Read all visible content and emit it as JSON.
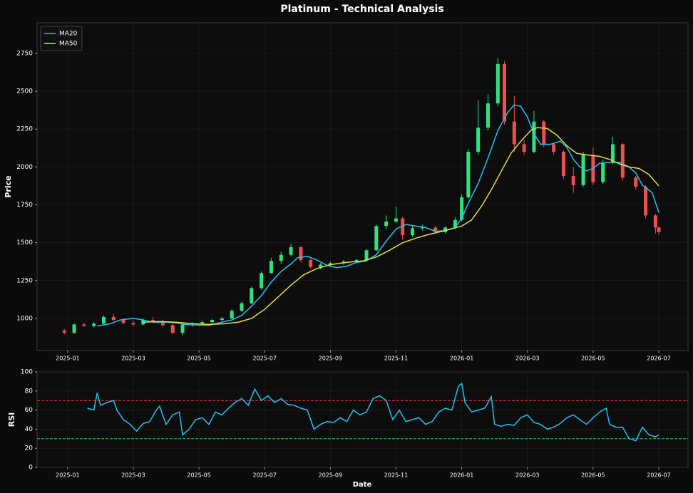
{
  "chart_data": [
    {
      "type": "candlestick",
      "title": "Platinum - Technical Analysis",
      "ylabel": "Price",
      "xlim": [
        -0.93,
        18.89
      ],
      "ylim": [
        788,
        2952
      ],
      "xticks": [
        {
          "value": 0,
          "label": "2025-01"
        },
        {
          "value": 2,
          "label": "2025-03"
        },
        {
          "value": 4,
          "label": "2025-05"
        },
        {
          "value": 6,
          "label": "2025-07"
        },
        {
          "value": 8,
          "label": "2025-09"
        },
        {
          "value": 10,
          "label": "2025-11"
        },
        {
          "value": 12,
          "label": "2026-01"
        },
        {
          "value": 14,
          "label": "2026-03"
        },
        {
          "value": 16,
          "label": "2026-05"
        },
        {
          "value": 18,
          "label": "2026-07"
        }
      ],
      "yticks": [
        1000,
        1250,
        1500,
        1750,
        2000,
        2250,
        2500,
        2750
      ],
      "grid": true,
      "legend": "upper left",
      "up_color": "#2ee37f",
      "down_color": "#ef4f4f",
      "candles": [
        [
          -0.1,
          920,
          930,
          895,
          905
        ],
        [
          0.2,
          905,
          965,
          900,
          960
        ],
        [
          0.5,
          960,
          970,
          945,
          950
        ],
        [
          0.8,
          950,
          975,
          940,
          965
        ],
        [
          1.1,
          965,
          1020,
          960,
          1010
        ],
        [
          1.4,
          1010,
          1030,
          985,
          990
        ],
        [
          1.7,
          990,
          1000,
          960,
          970
        ],
        [
          2.0,
          970,
          985,
          950,
          960
        ],
        [
          2.3,
          960,
          1000,
          955,
          990
        ],
        [
          2.6,
          990,
          1010,
          970,
          980
        ],
        [
          2.9,
          980,
          990,
          945,
          955
        ],
        [
          3.2,
          955,
          965,
          895,
          905
        ],
        [
          3.5,
          905,
          965,
          890,
          960
        ],
        [
          3.8,
          960,
          975,
          945,
          965
        ],
        [
          4.1,
          965,
          985,
          955,
          975
        ],
        [
          4.4,
          975,
          995,
          965,
          990
        ],
        [
          4.7,
          990,
          1010,
          980,
          1000
        ],
        [
          5.0,
          1000,
          1060,
          995,
          1050
        ],
        [
          5.3,
          1050,
          1110,
          1045,
          1100
        ],
        [
          5.6,
          1100,
          1210,
          1095,
          1200
        ],
        [
          5.9,
          1200,
          1310,
          1190,
          1300
        ],
        [
          6.2,
          1300,
          1400,
          1295,
          1380
        ],
        [
          6.5,
          1380,
          1440,
          1360,
          1420
        ],
        [
          6.8,
          1420,
          1490,
          1410,
          1470
        ],
        [
          7.1,
          1470,
          1480,
          1370,
          1385
        ],
        [
          7.4,
          1385,
          1395,
          1330,
          1340
        ],
        [
          7.7,
          1340,
          1365,
          1325,
          1355
        ],
        [
          8.0,
          1355,
          1375,
          1345,
          1365
        ],
        [
          8.4,
          1365,
          1385,
          1355,
          1375
        ],
        [
          8.8,
          1375,
          1395,
          1365,
          1385
        ],
        [
          9.1,
          1385,
          1460,
          1380,
          1450
        ],
        [
          9.4,
          1450,
          1620,
          1445,
          1610
        ],
        [
          9.7,
          1610,
          1680,
          1590,
          1640
        ],
        [
          10.0,
          1640,
          1740,
          1630,
          1660
        ],
        [
          10.2,
          1660,
          1670,
          1520,
          1550
        ],
        [
          10.5,
          1550,
          1610,
          1540,
          1595
        ],
        [
          10.8,
          1595,
          1620,
          1580,
          1600
        ],
        [
          11.2,
          1600,
          1610,
          1560,
          1570
        ],
        [
          11.5,
          1570,
          1610,
          1560,
          1600
        ],
        [
          11.8,
          1600,
          1670,
          1590,
          1650
        ],
        [
          12.0,
          1650,
          1820,
          1640,
          1800
        ],
        [
          12.2,
          1800,
          2120,
          1790,
          2100
        ],
        [
          12.5,
          2100,
          2440,
          2080,
          2260
        ],
        [
          12.8,
          2260,
          2480,
          2240,
          2420
        ],
        [
          13.1,
          2420,
          2720,
          2400,
          2680
        ],
        [
          13.3,
          2680,
          2700,
          2280,
          2300
        ],
        [
          13.6,
          2300,
          2470,
          2100,
          2150
        ],
        [
          13.9,
          2150,
          2180,
          2080,
          2100
        ],
        [
          14.2,
          2100,
          2370,
          2090,
          2300
        ],
        [
          14.5,
          2300,
          2310,
          2130,
          2150
        ],
        [
          14.8,
          2150,
          2160,
          2080,
          2100
        ],
        [
          15.1,
          2100,
          2110,
          1920,
          1940
        ],
        [
          15.4,
          1940,
          2000,
          1830,
          1880
        ],
        [
          15.7,
          1880,
          2100,
          1870,
          2080
        ],
        [
          16.0,
          2080,
          2130,
          1880,
          1900
        ],
        [
          16.3,
          1900,
          2050,
          1890,
          2030
        ],
        [
          16.6,
          2030,
          2200,
          2020,
          2150
        ],
        [
          16.9,
          2150,
          2160,
          1910,
          1930
        ],
        [
          17.3,
          1930,
          1940,
          1850,
          1870
        ],
        [
          17.6,
          1870,
          1880,
          1660,
          1680
        ],
        [
          17.9,
          1680,
          1690,
          1560,
          1600
        ],
        [
          18.0,
          1600,
          1610,
          1550,
          1570
        ]
      ],
      "series": [
        {
          "name": "MA20",
          "color": "#22c3ee",
          "x": [
            0.9,
            1.3,
            1.6,
            2.0,
            2.3,
            2.6,
            3.0,
            3.3,
            3.6,
            4.0,
            4.3,
            4.6,
            5.0,
            5.3,
            5.6,
            5.9,
            6.2,
            6.5,
            6.8,
            7.0,
            7.3,
            7.6,
            7.9,
            8.2,
            8.5,
            8.8,
            9.1,
            9.4,
            9.7,
            10.0,
            10.3,
            10.6,
            10.9,
            11.2,
            11.5,
            11.8,
            12.0,
            12.2,
            12.5,
            12.8,
            13.1,
            13.4,
            13.6,
            13.8,
            14.0,
            14.2,
            14.4,
            14.7,
            15.0,
            15.2,
            15.4,
            15.6,
            15.8,
            16.0,
            16.2,
            16.5,
            16.8,
            17.1,
            17.3,
            17.5,
            17.8,
            18.0
          ],
          "values": [
            950,
            965,
            990,
            1000,
            990,
            975,
            975,
            970,
            960,
            955,
            955,
            970,
            990,
            1020,
            1080,
            1150,
            1240,
            1310,
            1360,
            1400,
            1410,
            1385,
            1350,
            1335,
            1345,
            1370,
            1380,
            1420,
            1510,
            1590,
            1620,
            1610,
            1600,
            1575,
            1580,
            1600,
            1660,
            1760,
            1890,
            2060,
            2240,
            2360,
            2410,
            2400,
            2330,
            2220,
            2150,
            2150,
            2170,
            2130,
            2050,
            2000,
            1975,
            1990,
            2025,
            2030,
            2030,
            2000,
            1960,
            1880,
            1830,
            1700
          ]
        },
        {
          "name": "MA50",
          "color": "#e6dc3c",
          "x": [
            2.3,
            2.8,
            3.3,
            3.8,
            4.3,
            4.8,
            5.2,
            5.6,
            6.0,
            6.4,
            6.8,
            7.2,
            7.6,
            8.0,
            8.5,
            9.0,
            9.4,
            9.8,
            10.2,
            10.6,
            11.0,
            11.5,
            12.0,
            12.3,
            12.6,
            12.9,
            13.2,
            13.5,
            13.8,
            14.1,
            14.3,
            14.6,
            14.9,
            15.2,
            15.5,
            15.8,
            16.2,
            16.5,
            16.8,
            17.1,
            17.4,
            17.7,
            18.0
          ],
          "values": [
            975,
            980,
            975,
            965,
            960,
            965,
            975,
            1000,
            1060,
            1140,
            1220,
            1290,
            1330,
            1355,
            1370,
            1380,
            1405,
            1450,
            1500,
            1530,
            1555,
            1580,
            1610,
            1650,
            1740,
            1850,
            1970,
            2090,
            2170,
            2240,
            2260,
            2255,
            2210,
            2140,
            2090,
            2080,
            2070,
            2050,
            2020,
            2000,
            1990,
            1950,
            1875
          ]
        }
      ]
    },
    {
      "type": "line",
      "ylabel": "RSI",
      "xlabel": "Date",
      "xlim": [
        -0.93,
        18.89
      ],
      "ylim": [
        0,
        100
      ],
      "xticks": [
        {
          "value": 0,
          "label": "2025-01"
        },
        {
          "value": 2,
          "label": "2025-03"
        },
        {
          "value": 4,
          "label": "2025-05"
        },
        {
          "value": 6,
          "label": "2025-07"
        },
        {
          "value": 8,
          "label": "2025-09"
        },
        {
          "value": 10,
          "label": "2025-11"
        },
        {
          "value": 12,
          "label": "2026-01"
        },
        {
          "value": 14,
          "label": "2026-03"
        },
        {
          "value": 16,
          "label": "2026-05"
        },
        {
          "value": 18,
          "label": "2026-07"
        }
      ],
      "yticks": [
        0,
        20,
        40,
        60,
        80,
        100
      ],
      "grid": true,
      "hlines": [
        {
          "value": 70,
          "color": "#e04444"
        },
        {
          "value": 30,
          "color": "#22c06a"
        }
      ],
      "series": [
        {
          "color": "#22c3ee",
          "x": [
            0.6,
            0.8,
            0.9,
            1.0,
            1.2,
            1.4,
            1.5,
            1.7,
            1.9,
            2.1,
            2.3,
            2.5,
            2.7,
            2.8,
            3.0,
            3.2,
            3.4,
            3.5,
            3.7,
            3.9,
            4.1,
            4.3,
            4.5,
            4.7,
            4.9,
            5.1,
            5.3,
            5.5,
            5.7,
            5.9,
            6.1,
            6.3,
            6.5,
            6.7,
            6.9,
            7.1,
            7.3,
            7.5,
            7.7,
            7.9,
            8.1,
            8.3,
            8.5,
            8.7,
            8.9,
            9.1,
            9.3,
            9.5,
            9.7,
            9.9,
            10.1,
            10.3,
            10.5,
            10.7,
            10.9,
            11.1,
            11.3,
            11.5,
            11.7,
            11.9,
            12.0,
            12.1,
            12.3,
            12.5,
            12.7,
            12.9,
            13.0,
            13.2,
            13.4,
            13.6,
            13.8,
            14.0,
            14.2,
            14.4,
            14.6,
            14.8,
            15.0,
            15.2,
            15.4,
            15.6,
            15.8,
            16.0,
            16.2,
            16.4,
            16.5,
            16.7,
            16.9,
            17.1,
            17.3,
            17.5,
            17.7,
            17.9,
            18.0
          ],
          "values": [
            62,
            60,
            78,
            65,
            68,
            70,
            60,
            50,
            45,
            38,
            46,
            48,
            60,
            64,
            45,
            55,
            58,
            34,
            40,
            50,
            52,
            45,
            58,
            55,
            62,
            68,
            72,
            65,
            82,
            70,
            75,
            68,
            72,
            66,
            65,
            62,
            60,
            40,
            45,
            48,
            47,
            52,
            48,
            60,
            55,
            58,
            72,
            75,
            70,
            50,
            60,
            48,
            50,
            52,
            45,
            48,
            58,
            62,
            60,
            85,
            88,
            68,
            58,
            60,
            62,
            74,
            45,
            43,
            45,
            44,
            52,
            55,
            47,
            45,
            40,
            42,
            46,
            52,
            55,
            50,
            45,
            52,
            58,
            62,
            45,
            42,
            42,
            30,
            28,
            42,
            34,
            32,
            34
          ]
        }
      ]
    }
  ]
}
